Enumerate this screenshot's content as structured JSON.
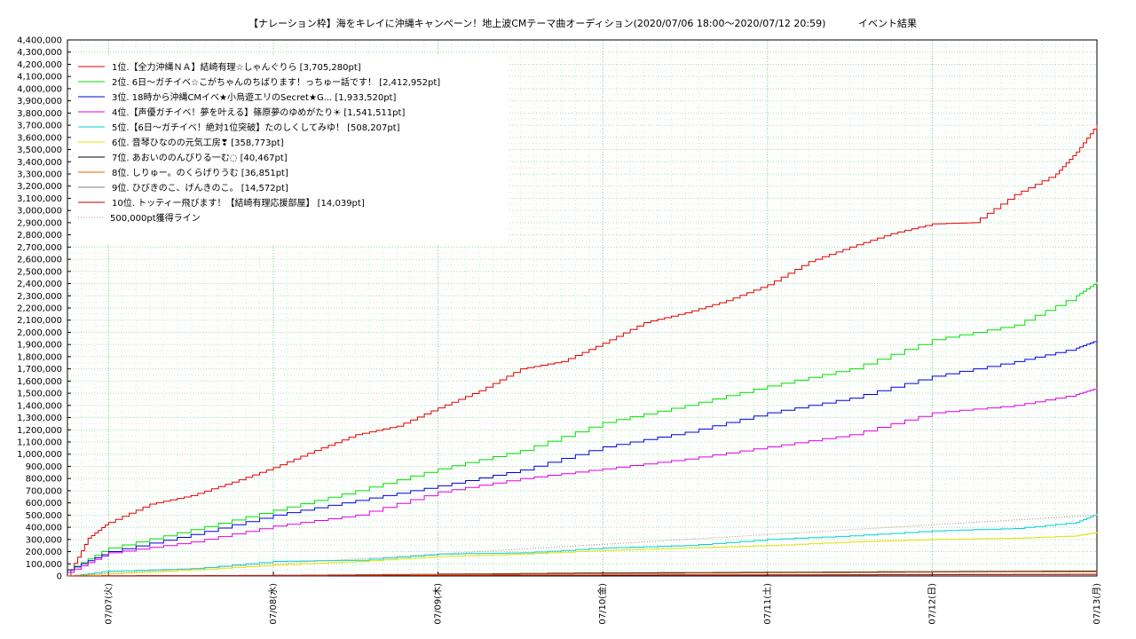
{
  "chart_data": {
    "type": "line",
    "title": "【ナレーション枠】海をキレイに沖縄キャンペーン！地上波CMテーマ曲オーディション(2020/07/06 18:00～2020/07/12 20:59)",
    "subtitle": "イベント結果",
    "xlabel": "",
    "ylabel": "",
    "ylim": [
      0,
      4400000
    ],
    "y_ticks": [
      0,
      100000,
      200000,
      300000,
      400000,
      500000,
      600000,
      700000,
      800000,
      900000,
      1000000,
      1100000,
      1200000,
      1300000,
      1400000,
      1500000,
      1600000,
      1700000,
      1800000,
      1900000,
      2000000,
      2100000,
      2200000,
      2300000,
      2400000,
      2500000,
      2600000,
      2700000,
      2800000,
      2900000,
      3000000,
      3100000,
      3200000,
      3300000,
      3400000,
      3500000,
      3600000,
      3700000,
      3800000,
      3900000,
      4000000,
      4100000,
      4200000,
      4300000,
      4400000
    ],
    "y_tick_labels": [
      "0",
      "100,000",
      "200,000",
      "300,000",
      "400,000",
      "500,000",
      "600,000",
      "700,000",
      "800,000",
      "900,000",
      "1,000,000",
      "1,100,000",
      "1,200,000",
      "1,300,000",
      "1,400,000",
      "1,500,000",
      "1,600,000",
      "1,700,000",
      "1,800,000",
      "1,900,000",
      "2,000,000",
      "2,100,000",
      "2,200,000",
      "2,300,000",
      "2,400,000",
      "2,500,000",
      "2,600,000",
      "2,700,000",
      "2,800,000",
      "2,900,000",
      "3,000,000",
      "3,100,000",
      "3,200,000",
      "3,300,000",
      "3,400,000",
      "3,500,000",
      "3,600,000",
      "3,700,000",
      "3,800,000",
      "3,900,000",
      "4,000,000",
      "4,100,000",
      "4,200,000",
      "4,300,000",
      "4,400,000"
    ],
    "x_range": [
      "2020-07-06 18:00",
      "2020-07-13 00:00"
    ],
    "x_ticks": [
      "2020-07-07 00:00",
      "2020-07-08 00:00",
      "2020-07-09 00:00",
      "2020-07-10 00:00",
      "2020-07-11 00:00",
      "2020-07-12 00:00",
      "2020-07-13 00:00"
    ],
    "x_tick_labels": [
      "07/07(火)",
      "07/08(水)",
      "07/09(木)",
      "07/10(金)",
      "07/11(土)",
      "07/12(日)",
      "07/13(月)"
    ],
    "grid": true,
    "legend_position": "top-left",
    "series": [
      {
        "name": "1位.【全力沖縄ＮＡ】結崎有理☆しゃんぐりら [3,705,280pt]",
        "color": "#e00000",
        "x": [
          "07-06 18:00",
          "07-06 21:00",
          "07-07 00:00",
          "07-07 06:00",
          "07-07 12:00",
          "07-07 18:00",
          "07-08 00:00",
          "07-08 06:00",
          "07-08 12:00",
          "07-08 18:00",
          "07-09 00:00",
          "07-09 06:00",
          "07-09 12:00",
          "07-09 18:00",
          "07-10 00:00",
          "07-10 06:00",
          "07-10 12:00",
          "07-10 18:00",
          "07-11 00:00",
          "07-11 06:00",
          "07-11 12:00",
          "07-11 18:00",
          "07-12 00:00",
          "07-12 06:00",
          "07-12 12:00",
          "07-12 18:00",
          "07-12 21:00",
          "07-13 00:00"
        ],
        "values": [
          0,
          310000,
          440000,
          590000,
          660000,
          770000,
          890000,
          1030000,
          1160000,
          1230000,
          1380000,
          1520000,
          1700000,
          1760000,
          1910000,
          2080000,
          2160000,
          2260000,
          2390000,
          2580000,
          2700000,
          2810000,
          2890000,
          2900000,
          3130000,
          3300000,
          3480000,
          3705280
        ]
      },
      {
        "name": "2位. 6日～ガチイベ☆こがちゃんのちばります！っちゅー話です！ [2,412,952pt]",
        "color": "#00e000",
        "x": [
          "07-06 18:00",
          "07-07 00:00",
          "07-07 12:00",
          "07-08 00:00",
          "07-08 12:00",
          "07-09 00:00",
          "07-09 12:00",
          "07-10 00:00",
          "07-10 12:00",
          "07-11 00:00",
          "07-11 12:00",
          "07-12 00:00",
          "07-12 12:00",
          "07-12 21:00",
          "07-13 00:00"
        ],
        "values": [
          50000,
          230000,
          380000,
          540000,
          700000,
          880000,
          1030000,
          1260000,
          1400000,
          1560000,
          1700000,
          1940000,
          2060000,
          2300000,
          2412952
        ]
      },
      {
        "name": "3位. 18時から沖縄CMイベ★小烏遊エリのSecret★G... [1,933,520pt]",
        "color": "#0000e0",
        "x": [
          "07-06 18:00",
          "07-07 00:00",
          "07-07 12:00",
          "07-08 00:00",
          "07-08 12:00",
          "07-09 00:00",
          "07-09 12:00",
          "07-10 00:00",
          "07-10 12:00",
          "07-11 00:00",
          "07-11 12:00",
          "07-12 00:00",
          "07-12 12:00",
          "07-12 21:00",
          "07-13 00:00"
        ],
        "values": [
          50000,
          200000,
          340000,
          500000,
          620000,
          740000,
          870000,
          1060000,
          1180000,
          1340000,
          1460000,
          1640000,
          1760000,
          1870000,
          1933520
        ]
      },
      {
        "name": "4位.【声優ガチイベ！夢を叶える】篠原夢のゆめがたり☀ [1,541,511pt]",
        "color": "#e000e0",
        "x": [
          "07-06 18:00",
          "07-07 00:00",
          "07-07 12:00",
          "07-08 00:00",
          "07-08 12:00",
          "07-09 00:00",
          "07-09 12:00",
          "07-10 00:00",
          "07-10 12:00",
          "07-11 00:00",
          "07-11 12:00",
          "07-12 00:00",
          "07-12 12:00",
          "07-12 21:00",
          "07-13 00:00"
        ],
        "values": [
          30000,
          190000,
          280000,
          410000,
          500000,
          690000,
          800000,
          880000,
          960000,
          1060000,
          1160000,
          1340000,
          1400000,
          1490000,
          1541511
        ]
      },
      {
        "name": "5位.【6日～ガチイベ！絶対1位突破】たのしくしてみゆ！ [508,207pt]",
        "color": "#00d0d0",
        "x": [
          "07-06 18:00",
          "07-07 00:00",
          "07-07 12:00",
          "07-08 00:00",
          "07-08 12:00",
          "07-09 00:00",
          "07-09 12:00",
          "07-10 00:00",
          "07-10 12:00",
          "07-11 00:00",
          "07-11 12:00",
          "07-12 00:00",
          "07-12 12:00",
          "07-12 21:00",
          "07-13 00:00"
        ],
        "values": [
          0,
          40000,
          60000,
          120000,
          130000,
          180000,
          190000,
          230000,
          250000,
          300000,
          330000,
          370000,
          390000,
          440000,
          508207
        ]
      },
      {
        "name": "6位. 音琴ひなのの元気工房❣ [358,773pt]",
        "color": "#e0e000",
        "x": [
          "07-06 18:00",
          "07-07 00:00",
          "07-07 12:00",
          "07-08 00:00",
          "07-08 12:00",
          "07-09 00:00",
          "07-09 12:00",
          "07-10 00:00",
          "07-10 12:00",
          "07-11 00:00",
          "07-11 12:00",
          "07-12 00:00",
          "07-12 12:00",
          "07-12 21:00",
          "07-13 00:00"
        ],
        "values": [
          0,
          20000,
          50000,
          90000,
          120000,
          160000,
          180000,
          210000,
          230000,
          250000,
          280000,
          300000,
          310000,
          330000,
          358773
        ]
      },
      {
        "name": "7位. あおいののんびりる一む◌ [40,467pt]",
        "color": "#000000",
        "x": [
          "07-06 18:00",
          "07-08 00:00",
          "07-09 00:00",
          "07-10 00:00",
          "07-11 00:00",
          "07-12 00:00",
          "07-13 00:00"
        ],
        "values": [
          0,
          5000,
          15000,
          25000,
          30000,
          36000,
          40467
        ]
      },
      {
        "name": "8位. しりゅー。のくらげりうむ [36,851pt]",
        "color": "#e06000",
        "x": [
          "07-06 18:00",
          "07-08 00:00",
          "07-09 00:00",
          "07-10 00:00",
          "07-11 00:00",
          "07-12 00:00",
          "07-13 00:00"
        ],
        "values": [
          0,
          4000,
          12000,
          20000,
          26000,
          32000,
          36851
        ]
      },
      {
        "name": "9位. ひびきのこ、げんきのこ。 [14,572pt]",
        "color": "#808080",
        "x": [
          "07-06 18:00",
          "07-08 00:00",
          "07-10 00:00",
          "07-12 00:00",
          "07-13 00:00"
        ],
        "values": [
          0,
          3000,
          8000,
          12000,
          14572
        ]
      },
      {
        "name": "10位. トッティー飛びます！【結崎有理応援部屋】 [14,039pt]",
        "color": "#c00000",
        "x": [
          "07-06 18:00",
          "07-08 00:00",
          "07-10 00:00",
          "07-12 00:00",
          "07-13 00:00"
        ],
        "values": [
          0,
          2000,
          7000,
          11000,
          14039
        ]
      },
      {
        "name": "500,000pt獲得ライン",
        "color": "#c08080",
        "dashed": true,
        "x": [
          "07-06 18:00",
          "07-13 00:00"
        ],
        "values": [
          0,
          500000
        ]
      }
    ]
  }
}
